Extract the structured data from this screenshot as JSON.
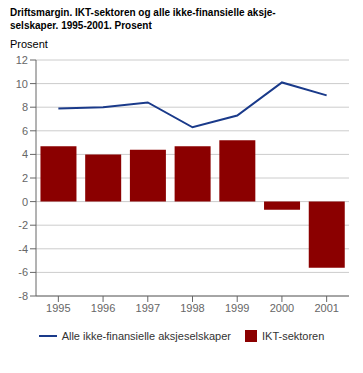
{
  "chart_data": {
    "type": "bar",
    "title": "Driftsmargin. IKT-sektoren og alle ikke-finansielle aksje-\nselskaper. 1995-2001. Prosent",
    "y_label": "Prosent",
    "categories": [
      1995,
      1996,
      1997,
      1998,
      1999,
      2000,
      2001
    ],
    "series": [
      {
        "name": "Alle ikke-finansielle aksjeselskaper",
        "type": "line",
        "color": "#1a3a8a",
        "values": [
          7.9,
          8.0,
          8.4,
          6.3,
          7.3,
          10.1,
          9.0
        ]
      },
      {
        "name": "IKT-sektoren",
        "type": "bar",
        "color": "#8B0000",
        "values": [
          4.7,
          4.0,
          4.4,
          4.7,
          5.2,
          -0.7,
          -5.6
        ]
      }
    ],
    "ylim": [
      -8,
      12
    ],
    "yticks": [
      -8,
      -6,
      -4,
      -2,
      0,
      2,
      4,
      6,
      8,
      10,
      12
    ],
    "grid": true,
    "legend": "bottom"
  }
}
